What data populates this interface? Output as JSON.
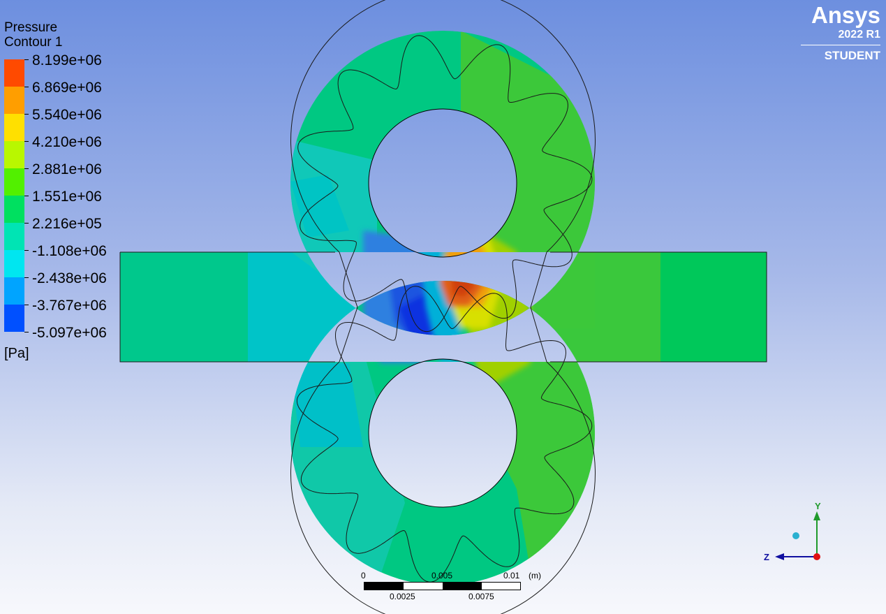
{
  "legend": {
    "title": "Pressure",
    "subtitle": "Contour 1",
    "levels": [
      "8.199e+06",
      "6.869e+06",
      "5.540e+06",
      "4.210e+06",
      "2.881e+06",
      "1.551e+06",
      "2.216e+05",
      "-1.108e+06",
      "-2.438e+06",
      "-3.767e+06",
      "-5.097e+06"
    ],
    "colors": [
      "#ff4a00",
      "#ff9e00",
      "#ffe000",
      "#b9f700",
      "#52f000",
      "#00e060",
      "#00e4b4",
      "#00e6f0",
      "#00a4ff",
      "#0050ff",
      "#0000ff"
    ],
    "unit": "[Pa]"
  },
  "brand": {
    "logo": "Ansys",
    "release": "2022 R1",
    "edition": "STUDENT"
  },
  "scale_bar": {
    "top_labels": [
      "0",
      "0.005",
      "0.01"
    ],
    "unit": "(m)",
    "bottom_labels": [
      "0.0025",
      "0.0075"
    ]
  },
  "triad": {
    "y_label": "Y",
    "z_label": "Z",
    "colors": {
      "y": "#1f9a2b",
      "z": "#1010a0",
      "origin": "#e01010"
    }
  },
  "contour_colors": {
    "inlet_duct": "#00c88c",
    "inlet_region": "#00c4c8",
    "outlet_duct": "#00c85a",
    "outlet_region": "#3cc83c",
    "ring_base": "#00c882",
    "low_core": "#2f6ee0",
    "low_peak": "#1030e0",
    "high_core": "#e26018",
    "high_peak": "#d44010"
  }
}
